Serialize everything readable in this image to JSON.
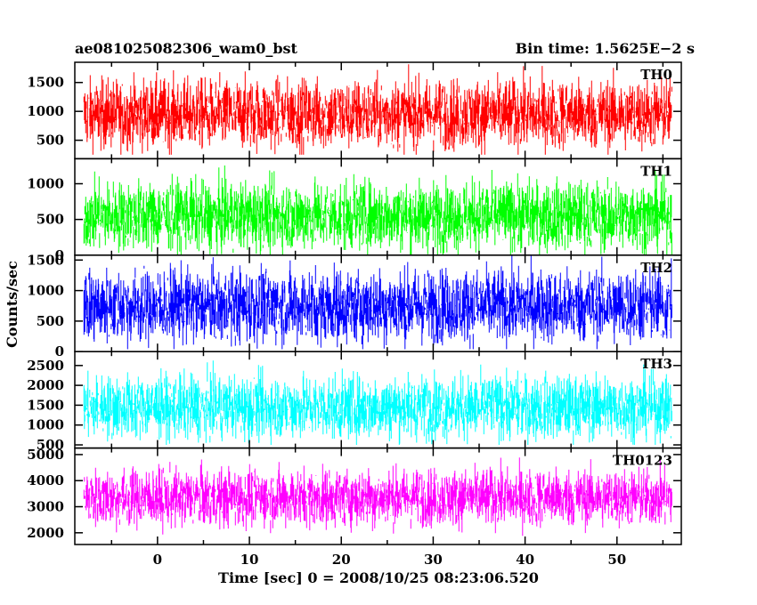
{
  "header": {
    "left_title": "ae081025082306_wam0_bst",
    "right_title": "Bin time: 1.5625E−2 s"
  },
  "axes": {
    "xlabel": "Time [sec] 0 = 2008/10/25 08:23:06.520",
    "ylabel": "Counts/sec"
  },
  "colors": {
    "TH0": "#ff0000",
    "TH1": "#00ff00",
    "TH2": "#0000ff",
    "TH3": "#00ffff",
    "TH0123": "#ff00ff"
  },
  "chart_data": {
    "type": "line",
    "xlim": [
      -9,
      57
    ],
    "x_ticks": [
      0,
      10,
      20,
      30,
      40,
      50
    ],
    "x_data_range": [
      -8,
      56
    ],
    "panels": [
      {
        "name": "TH0",
        "ylim": [
          180,
          1850
        ],
        "yticks": [
          500,
          1000,
          1500
        ],
        "mean": 950,
        "spread": 300,
        "min": 250,
        "max": 1840
      },
      {
        "name": "TH1",
        "ylim": [
          0,
          1350
        ],
        "yticks": [
          0,
          500,
          1000
        ],
        "mean": 550,
        "spread": 240,
        "min": 0,
        "max": 1340
      },
      {
        "name": "TH2",
        "ylim": [
          0,
          1580
        ],
        "yticks": [
          0,
          500,
          1000,
          1500
        ],
        "mean": 750,
        "spread": 300,
        "min": 40,
        "max": 1570
      },
      {
        "name": "TH3",
        "ylim": [
          420,
          2850
        ],
        "yticks": [
          500,
          1000,
          1500,
          2000,
          2500
        ],
        "mean": 1450,
        "spread": 400,
        "min": 500,
        "max": 2800
      },
      {
        "name": "TH0123",
        "ylim": [
          1550,
          5250
        ],
        "yticks": [
          2000,
          3000,
          4000,
          5000
        ],
        "mean": 3350,
        "spread": 550,
        "min": 1600,
        "max": 5200
      }
    ]
  }
}
